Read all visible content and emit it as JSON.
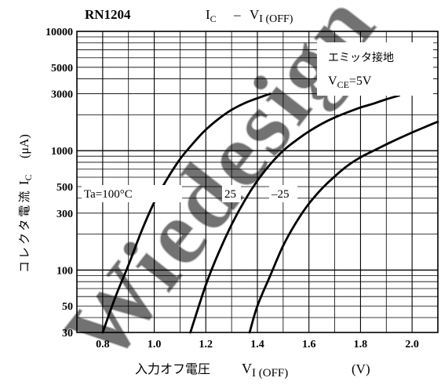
{
  "chart_data": {
    "type": "line",
    "part_number": "RN1204",
    "title": {
      "left": "I",
      "left_sub": "C",
      "dash": "–",
      "right": "V",
      "right_sub": "I (OFF)"
    },
    "annotation": {
      "line1": "エミッタ接地",
      "line2_main": "V",
      "line2_sub": "CE",
      "line2_rest": "=5V"
    },
    "xlabel": {
      "text": "入力オフ電圧",
      "symbol": "V",
      "symbol_sub": "I (OFF)",
      "unit": "(V)"
    },
    "ylabel": {
      "text": "コレクタ電流",
      "symbol": "I",
      "symbol_sub": "C",
      "unit": "(μA)"
    },
    "xlim": [
      0.7,
      2.1
    ],
    "ylim": [
      30,
      10000
    ],
    "yscale": "log",
    "x_ticks": [
      0.8,
      1.0,
      1.2,
      1.4,
      1.6,
      1.8,
      2.0
    ],
    "x_tick_labels": [
      "0.8",
      "1.0",
      "1.2",
      "1.4",
      "1.6",
      "1.8",
      "2.0"
    ],
    "y_ticks": [
      30,
      50,
      100,
      300,
      500,
      1000,
      3000,
      5000,
      10000
    ],
    "y_tick_labels": [
      "30",
      "50",
      "100",
      "300",
      "500",
      "1000",
      "3000",
      "5000",
      "10000"
    ],
    "grid": true,
    "series": [
      {
        "name": "Ta=100°C",
        "x": [
          0.8,
          0.85,
          0.9,
          0.95,
          1.0,
          1.05,
          1.1,
          1.15,
          1.2,
          1.25,
          1.3,
          1.35,
          1.4,
          1.45
        ],
        "y": [
          30,
          60,
          110,
          210,
          370,
          580,
          850,
          1150,
          1500,
          1850,
          2200,
          2500,
          2750,
          3000
        ]
      },
      {
        "name": "25",
        "x": [
          1.14,
          1.2,
          1.25,
          1.3,
          1.35,
          1.4,
          1.45,
          1.5,
          1.55,
          1.6,
          1.65,
          1.7,
          1.75,
          1.8,
          1.85,
          1.9,
          1.95
        ],
        "y": [
          30,
          75,
          140,
          240,
          380,
          560,
          770,
          1000,
          1220,
          1450,
          1680,
          1900,
          2100,
          2300,
          2480,
          2700,
          2900
        ]
      },
      {
        "name": "–25",
        "x": [
          1.37,
          1.4,
          1.45,
          1.5,
          1.55,
          1.6,
          1.65,
          1.7,
          1.75,
          1.8,
          1.85,
          1.9,
          1.95,
          2.0,
          2.05,
          2.1
        ],
        "y": [
          30,
          50,
          90,
          160,
          250,
          360,
          480,
          610,
          750,
          880,
          1000,
          1130,
          1270,
          1420,
          1580,
          1750
        ]
      }
    ],
    "curve_labels": [
      "Ta=100°C",
      "25",
      "–25"
    ],
    "watermark": "Wiedesign"
  }
}
